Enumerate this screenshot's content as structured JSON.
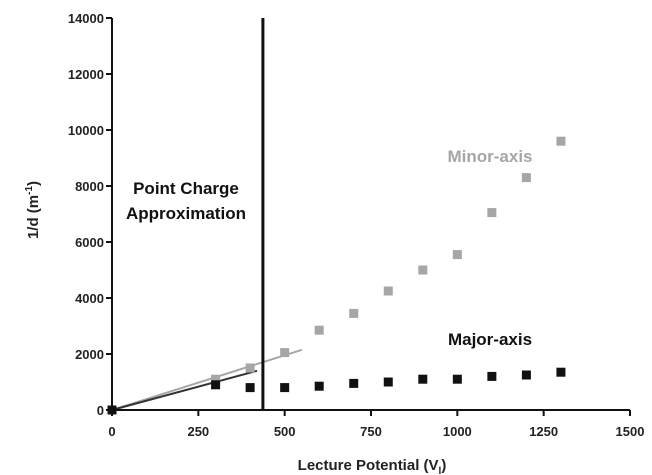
{
  "chart_data": {
    "type": "scatter",
    "xlabel": "Lecture Potential (V",
    "xlabel_sub": "l",
    "xlabel_close": ")",
    "ylabel": "1/d (m",
    "ylabel_sup": "-1",
    "ylabel_close": ")",
    "xlim": [
      0,
      1500
    ],
    "ylim": [
      0,
      14000
    ],
    "xticks": [
      0,
      250,
      500,
      750,
      1000,
      1250,
      1500
    ],
    "yticks": [
      0,
      2000,
      4000,
      6000,
      8000,
      10000,
      12000,
      14000
    ],
    "grid": false,
    "series": [
      {
        "name": "Minor-axis",
        "color": "#a6a6a6",
        "x": [
          0,
          300,
          400,
          500,
          600,
          700,
          800,
          900,
          1000,
          1100,
          1200,
          1300
        ],
        "y": [
          0,
          1100,
          1500,
          2050,
          2850,
          3450,
          4250,
          5000,
          5550,
          7050,
          8300,
          9600
        ]
      },
      {
        "name": "Major-axis",
        "color": "#111111",
        "x": [
          0,
          300,
          400,
          500,
          600,
          700,
          800,
          900,
          1000,
          1100,
          1200,
          1300
        ],
        "y": [
          0,
          900,
          800,
          800,
          850,
          950,
          1000,
          1100,
          1100,
          1200,
          1250,
          1350
        ]
      }
    ],
    "fit_lines": [
      {
        "series": "Minor-axis",
        "color": "#a6a6a6",
        "x": [
          0,
          550
        ],
        "y": [
          0,
          2150
        ]
      },
      {
        "series": "Major-axis",
        "color": "#333333",
        "x": [
          0,
          420
        ],
        "y": [
          0,
          1400
        ]
      }
    ],
    "vertical_line": {
      "x": 437,
      "color": "#111111"
    },
    "annotations": {
      "region_line1": "Point Charge",
      "region_line2": "Approximation"
    }
  }
}
